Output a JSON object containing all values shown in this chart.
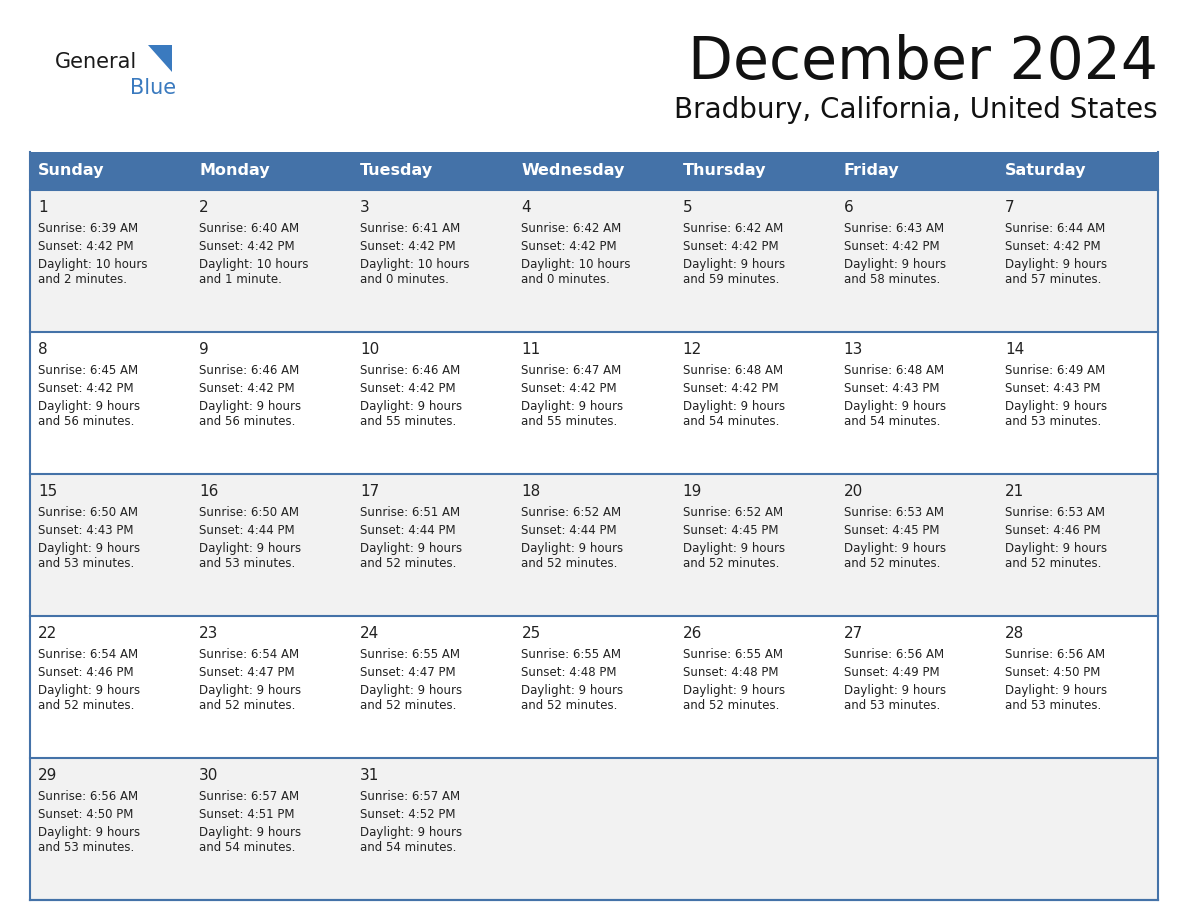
{
  "title": "December 2024",
  "subtitle": "Bradbury, California, United States",
  "days_of_week": [
    "Sunday",
    "Monday",
    "Tuesday",
    "Wednesday",
    "Thursday",
    "Friday",
    "Saturday"
  ],
  "header_bg": "#4472a8",
  "header_text": "#FFFFFF",
  "cell_bg": "#f2f2f2",
  "cell_bg2": "#ffffff",
  "text_color": "#222222",
  "grid_color": "#4472a8",
  "logo_general_color": "#1a1a1a",
  "logo_blue_color": "#3a7abf",
  "logo_triangle_color": "#3a7abf",
  "calendar_data": [
    [
      {
        "day": "1",
        "sunrise": "6:39 AM",
        "sunset": "4:42 PM",
        "daylight": "10 hours",
        "daylight2": "and 2 minutes."
      },
      {
        "day": "2",
        "sunrise": "6:40 AM",
        "sunset": "4:42 PM",
        "daylight": "10 hours",
        "daylight2": "and 1 minute."
      },
      {
        "day": "3",
        "sunrise": "6:41 AM",
        "sunset": "4:42 PM",
        "daylight": "10 hours",
        "daylight2": "and 0 minutes."
      },
      {
        "day": "4",
        "sunrise": "6:42 AM",
        "sunset": "4:42 PM",
        "daylight": "10 hours",
        "daylight2": "and 0 minutes."
      },
      {
        "day": "5",
        "sunrise": "6:42 AM",
        "sunset": "4:42 PM",
        "daylight": "9 hours",
        "daylight2": "and 59 minutes."
      },
      {
        "day": "6",
        "sunrise": "6:43 AM",
        "sunset": "4:42 PM",
        "daylight": "9 hours",
        "daylight2": "and 58 minutes."
      },
      {
        "day": "7",
        "sunrise": "6:44 AM",
        "sunset": "4:42 PM",
        "daylight": "9 hours",
        "daylight2": "and 57 minutes."
      }
    ],
    [
      {
        "day": "8",
        "sunrise": "6:45 AM",
        "sunset": "4:42 PM",
        "daylight": "9 hours",
        "daylight2": "and 56 minutes."
      },
      {
        "day": "9",
        "sunrise": "6:46 AM",
        "sunset": "4:42 PM",
        "daylight": "9 hours",
        "daylight2": "and 56 minutes."
      },
      {
        "day": "10",
        "sunrise": "6:46 AM",
        "sunset": "4:42 PM",
        "daylight": "9 hours",
        "daylight2": "and 55 minutes."
      },
      {
        "day": "11",
        "sunrise": "6:47 AM",
        "sunset": "4:42 PM",
        "daylight": "9 hours",
        "daylight2": "and 55 minutes."
      },
      {
        "day": "12",
        "sunrise": "6:48 AM",
        "sunset": "4:42 PM",
        "daylight": "9 hours",
        "daylight2": "and 54 minutes."
      },
      {
        "day": "13",
        "sunrise": "6:48 AM",
        "sunset": "4:43 PM",
        "daylight": "9 hours",
        "daylight2": "and 54 minutes."
      },
      {
        "day": "14",
        "sunrise": "6:49 AM",
        "sunset": "4:43 PM",
        "daylight": "9 hours",
        "daylight2": "and 53 minutes."
      }
    ],
    [
      {
        "day": "15",
        "sunrise": "6:50 AM",
        "sunset": "4:43 PM",
        "daylight": "9 hours",
        "daylight2": "and 53 minutes."
      },
      {
        "day": "16",
        "sunrise": "6:50 AM",
        "sunset": "4:44 PM",
        "daylight": "9 hours",
        "daylight2": "and 53 minutes."
      },
      {
        "day": "17",
        "sunrise": "6:51 AM",
        "sunset": "4:44 PM",
        "daylight": "9 hours",
        "daylight2": "and 52 minutes."
      },
      {
        "day": "18",
        "sunrise": "6:52 AM",
        "sunset": "4:44 PM",
        "daylight": "9 hours",
        "daylight2": "and 52 minutes."
      },
      {
        "day": "19",
        "sunrise": "6:52 AM",
        "sunset": "4:45 PM",
        "daylight": "9 hours",
        "daylight2": "and 52 minutes."
      },
      {
        "day": "20",
        "sunrise": "6:53 AM",
        "sunset": "4:45 PM",
        "daylight": "9 hours",
        "daylight2": "and 52 minutes."
      },
      {
        "day": "21",
        "sunrise": "6:53 AM",
        "sunset": "4:46 PM",
        "daylight": "9 hours",
        "daylight2": "and 52 minutes."
      }
    ],
    [
      {
        "day": "22",
        "sunrise": "6:54 AM",
        "sunset": "4:46 PM",
        "daylight": "9 hours",
        "daylight2": "and 52 minutes."
      },
      {
        "day": "23",
        "sunrise": "6:54 AM",
        "sunset": "4:47 PM",
        "daylight": "9 hours",
        "daylight2": "and 52 minutes."
      },
      {
        "day": "24",
        "sunrise": "6:55 AM",
        "sunset": "4:47 PM",
        "daylight": "9 hours",
        "daylight2": "and 52 minutes."
      },
      {
        "day": "25",
        "sunrise": "6:55 AM",
        "sunset": "4:48 PM",
        "daylight": "9 hours",
        "daylight2": "and 52 minutes."
      },
      {
        "day": "26",
        "sunrise": "6:55 AM",
        "sunset": "4:48 PM",
        "daylight": "9 hours",
        "daylight2": "and 52 minutes."
      },
      {
        "day": "27",
        "sunrise": "6:56 AM",
        "sunset": "4:49 PM",
        "daylight": "9 hours",
        "daylight2": "and 53 minutes."
      },
      {
        "day": "28",
        "sunrise": "6:56 AM",
        "sunset": "4:50 PM",
        "daylight": "9 hours",
        "daylight2": "and 53 minutes."
      }
    ],
    [
      {
        "day": "29",
        "sunrise": "6:56 AM",
        "sunset": "4:50 PM",
        "daylight": "9 hours",
        "daylight2": "and 53 minutes."
      },
      {
        "day": "30",
        "sunrise": "6:57 AM",
        "sunset": "4:51 PM",
        "daylight": "9 hours",
        "daylight2": "and 54 minutes."
      },
      {
        "day": "31",
        "sunrise": "6:57 AM",
        "sunset": "4:52 PM",
        "daylight": "9 hours",
        "daylight2": "and 54 minutes."
      },
      null,
      null,
      null,
      null
    ]
  ]
}
